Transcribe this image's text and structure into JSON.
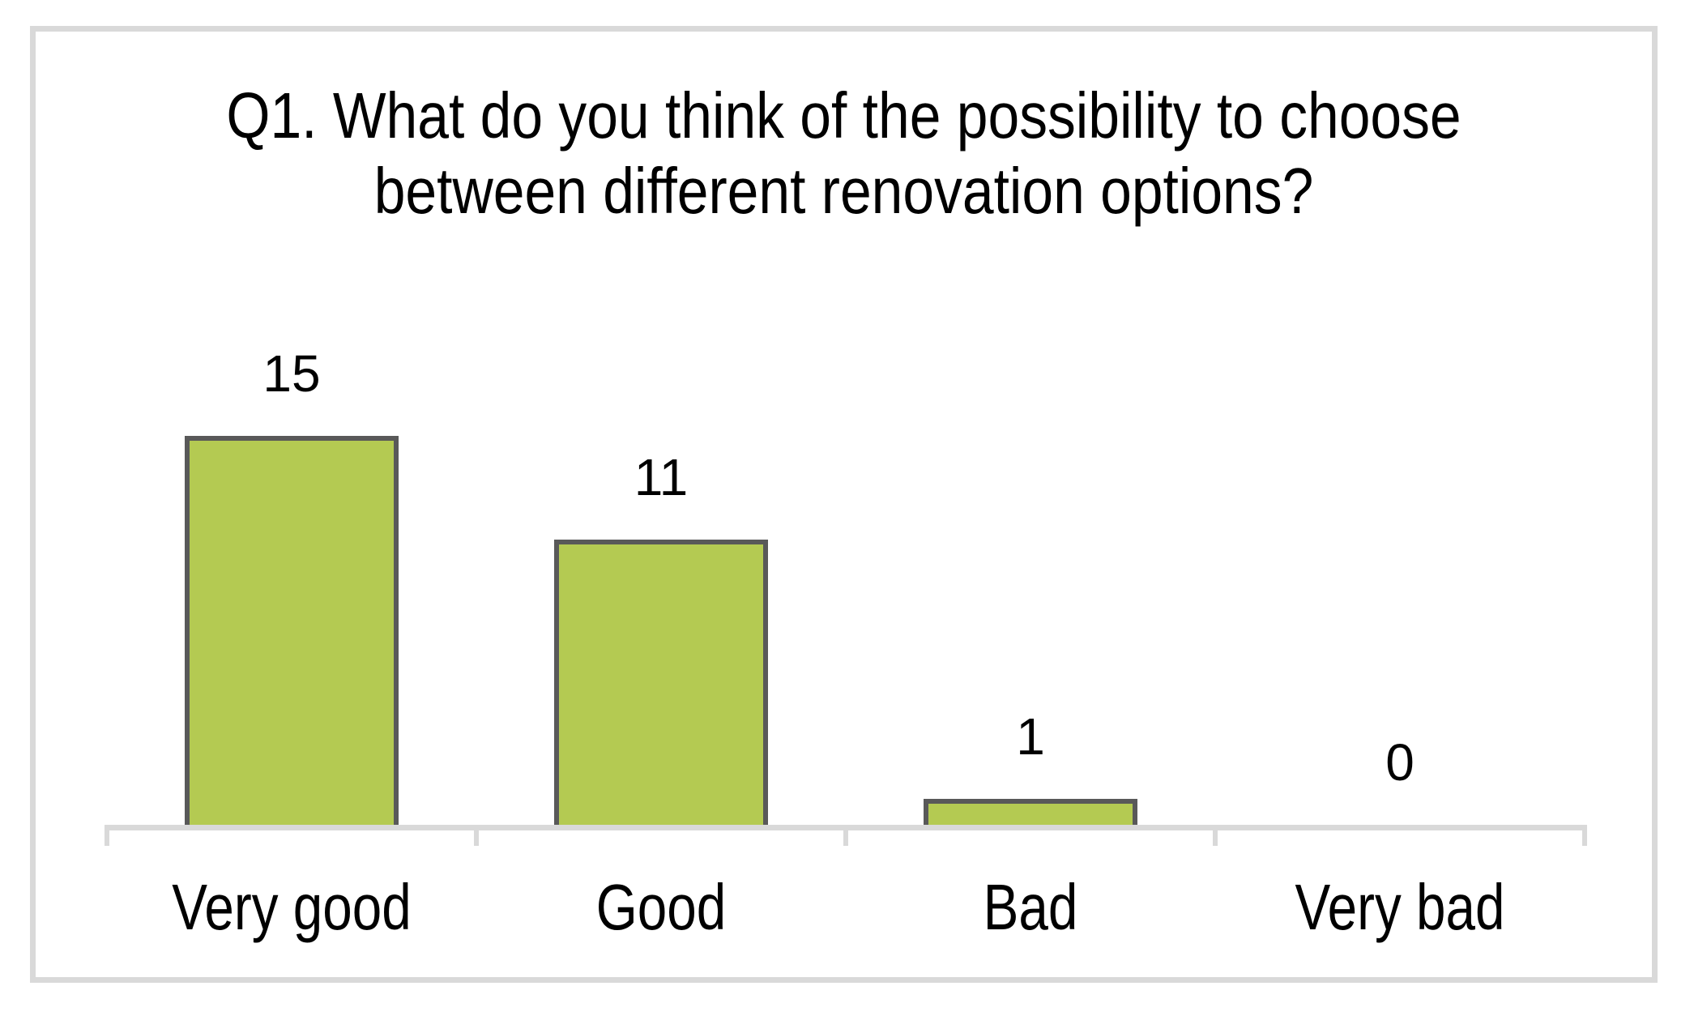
{
  "chart_data": {
    "type": "bar",
    "title": "Q1. What do you think of the possibility to choose between different renovation options?",
    "title_lines": [
      "Q1. What do you think of the possibility to choose",
      "between different renovation options?"
    ],
    "categories": [
      "Very good",
      "Good",
      "Bad",
      "Very bad"
    ],
    "values": [
      15,
      11,
      1,
      0
    ],
    "data_labels": [
      15,
      11,
      1,
      0
    ],
    "xlabel": "",
    "ylabel": "",
    "ylim": [
      0,
      16
    ],
    "grid": false,
    "legend": false,
    "y_axis_shown": false,
    "colors": {
      "bar_fill": "#b4ca52",
      "bar_border": "#595959",
      "axis_line": "#d9d9d9",
      "frame_border": "#d9d9d9",
      "text": "#000000"
    }
  }
}
